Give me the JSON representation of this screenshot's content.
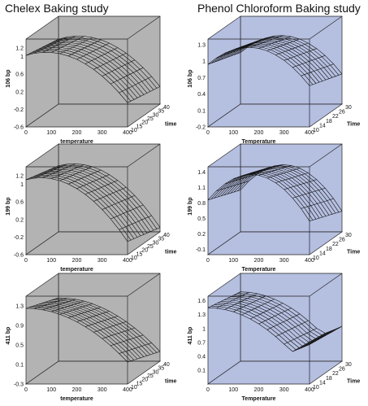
{
  "page": {
    "left_title": "Chelex Baking study",
    "right_title": "Phenol Chloroform Baking study"
  },
  "colors": {
    "chelex_fill": "#b3b3b3",
    "phenol_fill": "#b5bfe0",
    "mesh": "#111111",
    "frame": "#222222"
  },
  "chart_data": [
    {
      "type": "surface",
      "study": "Chelex",
      "xlabel": "temperature",
      "ylabel": "time",
      "zlabel": "106 bp",
      "xlim": [
        0,
        400
      ],
      "ylim": [
        10,
        40
      ],
      "zlim": [
        -0.6,
        1.4
      ],
      "xticks": [
        "0",
        "100",
        "200",
        "300",
        "400"
      ],
      "yticks": [
        "10",
        "15",
        "20",
        "25",
        "30",
        "35",
        "40"
      ],
      "zticks": [
        "-0.6",
        "-0.2",
        "0.2",
        "0.6",
        "1",
        "1.2"
      ],
      "surface": {
        "model": "quadratic_temperature",
        "peak_temperature": 80,
        "peak_value": 1.1,
        "value_at_400": -0.05,
        "time_effect": -0.15
      }
    },
    {
      "type": "surface",
      "study": "Chelex",
      "xlabel": "temperature",
      "ylabel": "time",
      "zlabel": "199 bp",
      "xlim": [
        0,
        400
      ],
      "ylim": [
        10,
        40
      ],
      "zlim": [
        -0.6,
        1.4
      ],
      "xticks": [
        "0",
        "100",
        "200",
        "300",
        "400"
      ],
      "yticks": [
        "10",
        "15",
        "20",
        "25",
        "30",
        "35",
        "40"
      ],
      "zticks": [
        "-0.6",
        "-0.2",
        "0.2",
        "0.6",
        "1",
        "1.2"
      ],
      "surface": {
        "model": "quadratic_temperature",
        "peak_temperature": 60,
        "peak_value": 1.15,
        "value_at_400": -0.3,
        "time_effect": -0.2
      }
    },
    {
      "type": "surface",
      "study": "Chelex",
      "xlabel": "temperature",
      "ylabel": "time",
      "zlabel": "411 bp",
      "xlim": [
        0,
        400
      ],
      "ylim": [
        10,
        40
      ],
      "zlim": [
        -0.3,
        1.5
      ],
      "xticks": [
        "0",
        "100",
        "200",
        "300",
        "400"
      ],
      "yticks": [
        "10",
        "15",
        "20",
        "25",
        "30",
        "35",
        "40"
      ],
      "zticks": [
        "-0.3",
        "0.1",
        "0.5",
        "0.9",
        "1.3"
      ],
      "surface": {
        "model": "quadratic_temperature",
        "peak_temperature": 0,
        "peak_value": 1.25,
        "value_at_400": 0.15,
        "time_effect": -0.25
      }
    },
    {
      "type": "surface",
      "study": "Phenol Chloroform",
      "xlabel": "Temperature",
      "ylabel": "Time",
      "zlabel": "106 bp",
      "xlim": [
        0,
        400
      ],
      "ylim": [
        10,
        30
      ],
      "zlim": [
        -0.2,
        1.4
      ],
      "xticks": [
        "0",
        "100",
        "200",
        "300",
        "400"
      ],
      "yticks": [
        "10",
        "14",
        "18",
        "22",
        "26",
        "30"
      ],
      "zticks": [
        "-0.2",
        "0.1",
        "0.4",
        "0.7",
        "1",
        "1.3"
      ],
      "surface": {
        "model": "quadratic_temperature",
        "peak_temperature": 160,
        "peak_value": 1.25,
        "value_at_400": 0.55,
        "time_effect": -0.2
      }
    },
    {
      "type": "surface",
      "study": "Phenol Chloroform",
      "xlabel": "Temperature",
      "ylabel": "Time",
      "zlabel": "199 bp",
      "xlim": [
        0,
        400
      ],
      "ylim": [
        10,
        30
      ],
      "zlim": [
        -0.2,
        1.5
      ],
      "xticks": [
        "0",
        "100",
        "200",
        "300",
        "400"
      ],
      "yticks": [
        "10",
        "14",
        "18",
        "22",
        "26",
        "30"
      ],
      "zticks": [
        "-0.1",
        "0.2",
        "0.5",
        "0.8",
        "1.1",
        "1.4"
      ],
      "surface": {
        "model": "quadratic_temperature",
        "peak_temperature": 170,
        "peak_value": 1.35,
        "value_at_400": 0.45,
        "time_effect": -0.25
      }
    },
    {
      "type": "surface",
      "study": "Phenol Chloroform",
      "xlabel": "Temperature",
      "ylabel": "Time",
      "zlabel": "411 bp",
      "xlim": [
        0,
        400
      ],
      "ylim": [
        10,
        30
      ],
      "zlim": [
        -0.2,
        1.7
      ],
      "xticks": [
        "0",
        "100",
        "200",
        "300",
        "400"
      ],
      "yticks": [
        "10",
        "14",
        "18",
        "22",
        "26",
        "30"
      ],
      "zticks": [
        "0.1",
        "0.4",
        "0.7",
        "1",
        "1.3",
        "1.6"
      ],
      "surface": {
        "model": "quadratic_temperature",
        "peak_temperature": 0,
        "peak_value": 1.45,
        "value_at_400": 0.05,
        "time_effect": -0.15,
        "minimum_temperature": 330
      }
    }
  ]
}
